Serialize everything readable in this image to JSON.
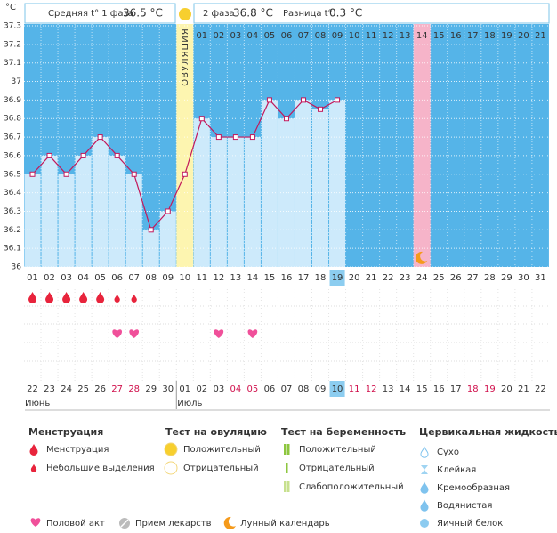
{
  "chart_data": {
    "type": "line",
    "y_unit": "°C",
    "header": {
      "phase1_label": "Средняя t° 1 фаза",
      "phase1_value": "36.5 °C",
      "phase2_label": "2 фаза",
      "phase2_value": "36.8 °C",
      "diff_label": "Разница t°",
      "diff_value": "0.3 °C"
    },
    "ovulation_label": "ОВУЛЯЦИЯ",
    "ovulation_index": 9,
    "moon_index": 23,
    "highlight_index": 18,
    "ylim": [
      36,
      37.3
    ],
    "yticks": [
      36,
      36.1,
      36.2,
      36.3,
      36.4,
      36.5,
      36.6,
      36.7,
      36.8,
      36.9,
      37,
      37.1,
      37.2,
      37.3
    ],
    "grid": true,
    "background_color": "#55b4e8",
    "bar_color": "#cdeafb",
    "color": "#c2185b",
    "categories": [
      "01",
      "02",
      "03",
      "04",
      "05",
      "06",
      "07",
      "08",
      "09",
      "10",
      "11",
      "12",
      "13",
      "14",
      "15",
      "16",
      "17",
      "18",
      "19",
      "20",
      "21",
      "22",
      "23",
      "24",
      "25",
      "26",
      "27",
      "28",
      "29",
      "30",
      "31"
    ],
    "phase2_days": [
      "01",
      "02",
      "03",
      "04",
      "05",
      "06",
      "07",
      "08",
      "09",
      "10",
      "11",
      "12",
      "13",
      "14",
      "15",
      "16",
      "17",
      "18",
      "19",
      "20",
      "21"
    ],
    "values": [
      36.5,
      36.6,
      36.5,
      36.6,
      36.7,
      36.6,
      36.5,
      36.2,
      36.3,
      36.5,
      36.8,
      36.7,
      36.7,
      36.7,
      36.9,
      36.8,
      36.9,
      36.85,
      36.9,
      null,
      null,
      null,
      null,
      null,
      null,
      null,
      null,
      null,
      null,
      null,
      null
    ],
    "menstruation_days": [
      0,
      1,
      2,
      3,
      4
    ],
    "spotting_days": [
      5,
      6
    ],
    "intercourse_days": [
      5,
      6,
      11,
      13
    ],
    "dates": [
      "22",
      "23",
      "24",
      "25",
      "26",
      "27",
      "28",
      "29",
      "30",
      "01",
      "02",
      "03",
      "04",
      "05",
      "06",
      "07",
      "08",
      "09",
      "10",
      "11",
      "12",
      "13",
      "14",
      "15",
      "16",
      "17",
      "18",
      "19",
      "20",
      "21",
      "22"
    ],
    "weekend_dates": [
      5,
      6,
      12,
      13,
      19,
      20,
      26,
      27
    ],
    "months": [
      {
        "index": 0,
        "label": "Июнь"
      },
      {
        "index": 9,
        "label": "Июль"
      }
    ],
    "legend": [
      {
        "title": "Менструация",
        "items": [
          "Менструация",
          "Небольшие выделения"
        ]
      },
      {
        "title": "Тест на овуляцию",
        "items": [
          "Положительный",
          "Отрицательный"
        ]
      },
      {
        "title": "Тест на беременность",
        "items": [
          "Положительный",
          "Отрицательный",
          "Слабоположительный"
        ]
      },
      {
        "title": "Цервикальная жидкость",
        "items": [
          "Сухо",
          "Клейкая",
          "Кремообразная",
          "Водянистая",
          "Яичный белок"
        ]
      }
    ],
    "other_legend": [
      "Половой акт",
      "Прием лекарств",
      "Лунный календарь"
    ]
  }
}
